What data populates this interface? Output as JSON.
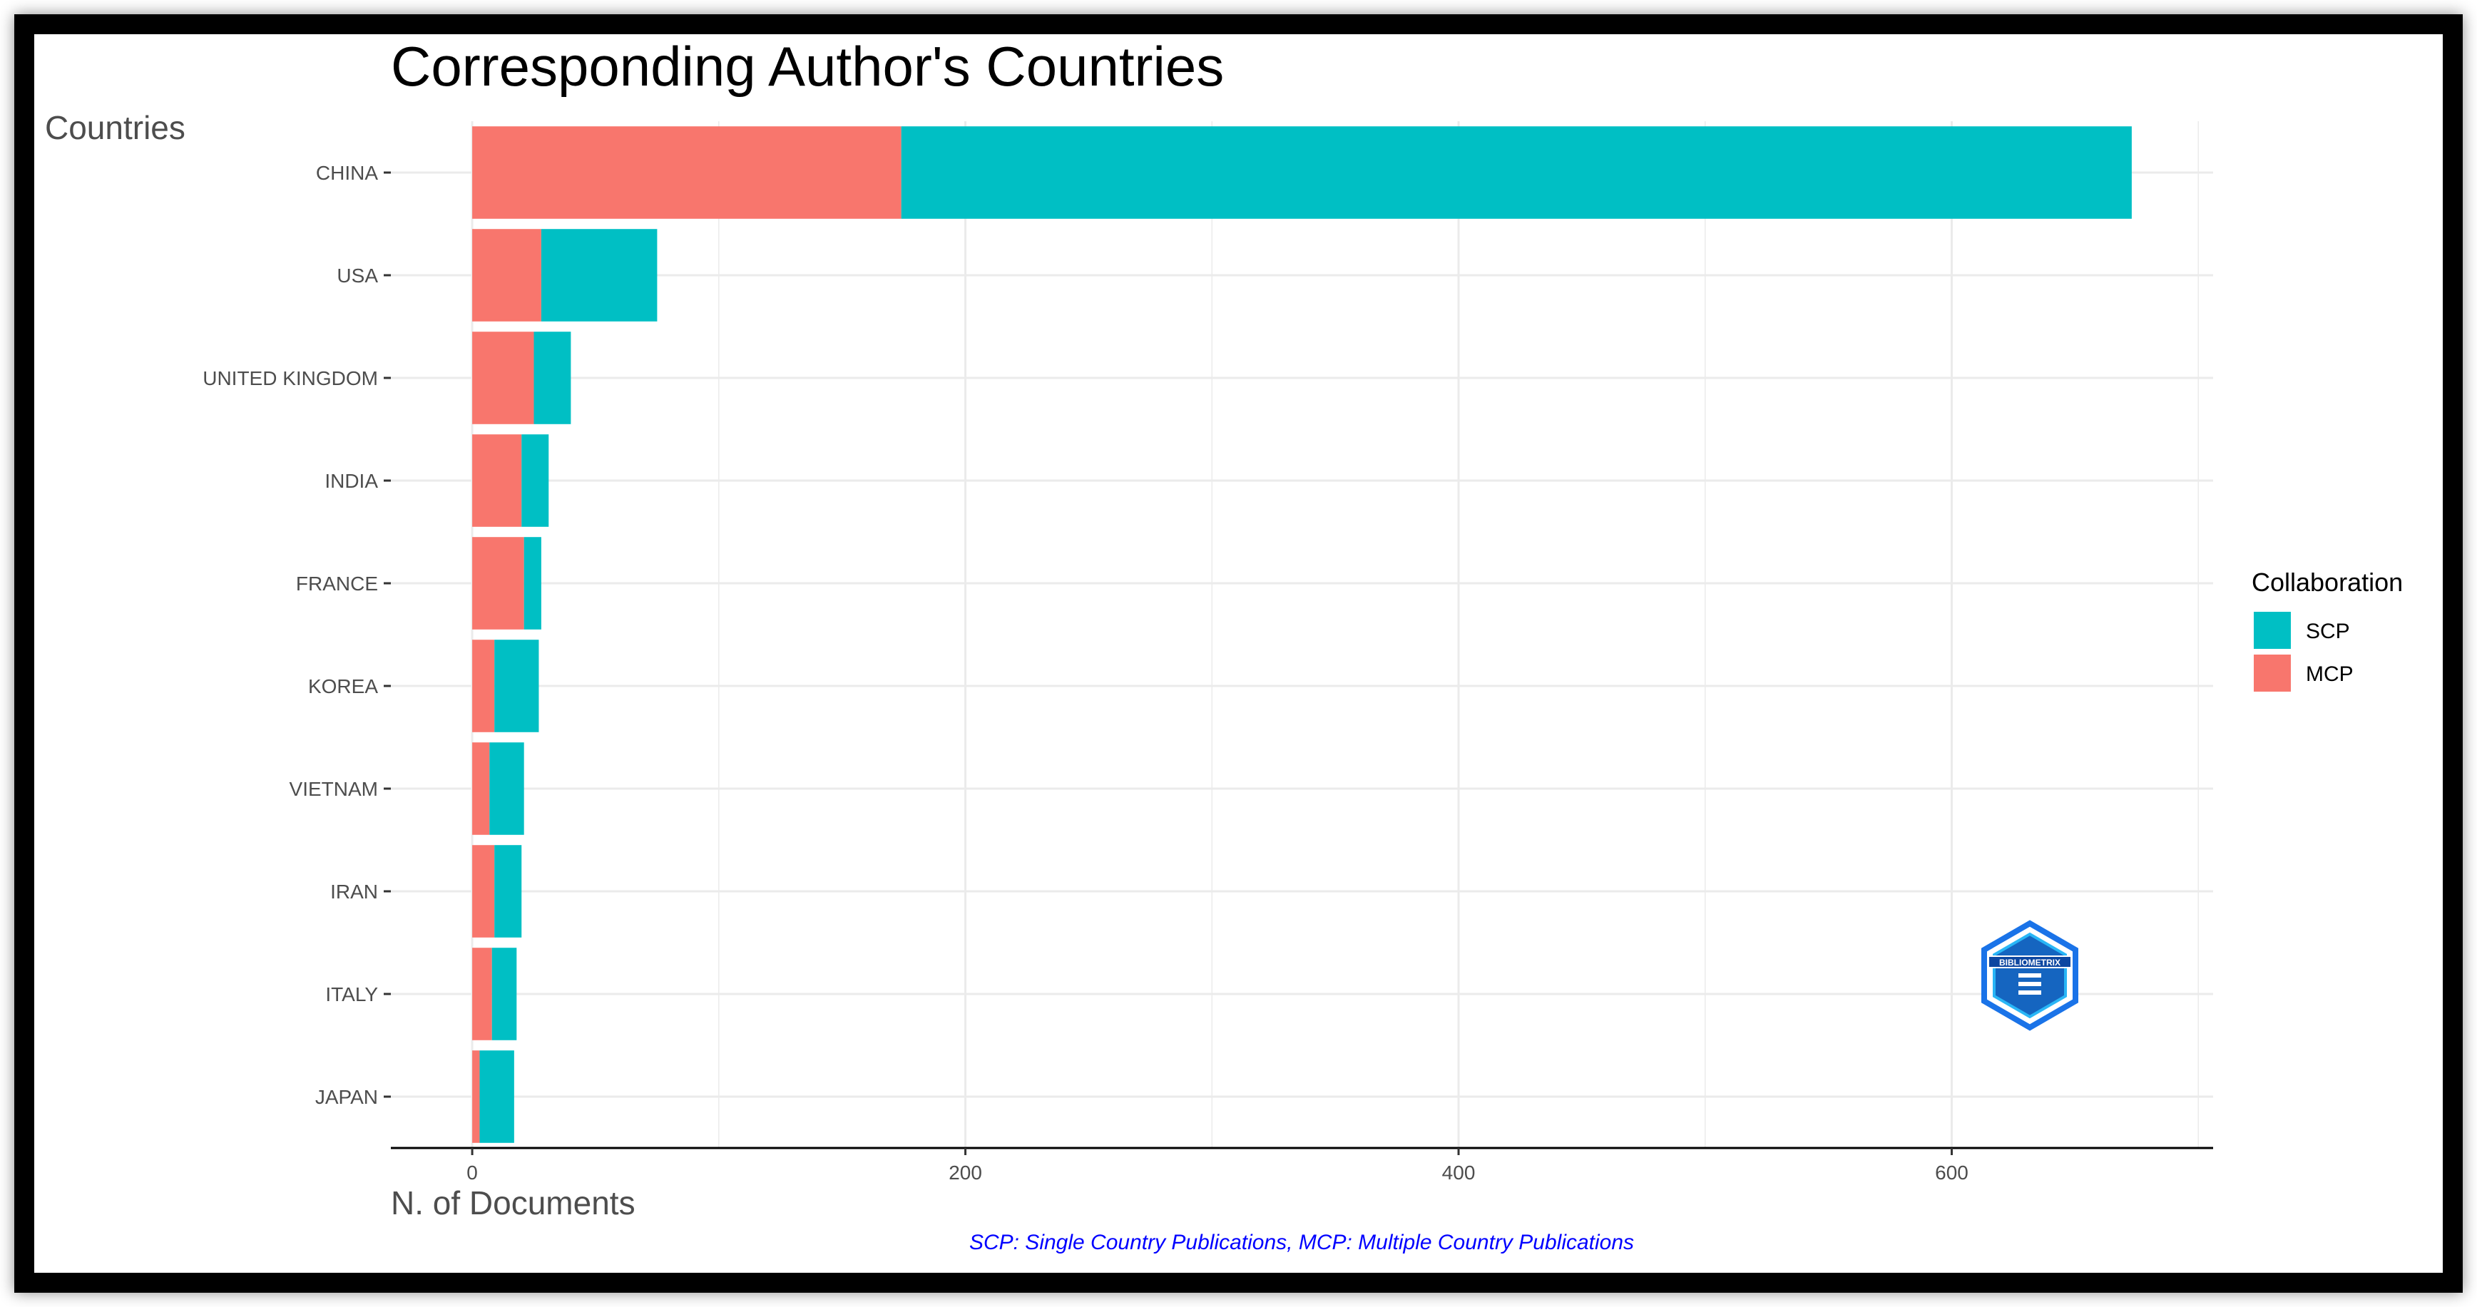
{
  "chart_data": {
    "type": "bar",
    "orientation": "horizontal",
    "stacked": true,
    "title": "Corresponding Author's Countries",
    "xlabel": "N. of Documents",
    "ylabel": "Countries",
    "categories": [
      "CHINA",
      "USA",
      "UNITED KINGDOM",
      "INDIA",
      "FRANCE",
      "KOREA",
      "VIETNAM",
      "IRAN",
      "ITALY",
      "JAPAN"
    ],
    "series": [
      {
        "name": "MCP",
        "color": "#F8766D",
        "values": [
          174,
          28,
          25,
          20,
          21,
          9,
          7,
          9,
          8,
          3
        ]
      },
      {
        "name": "SCP",
        "color": "#00BFC4",
        "values": [
          499,
          47,
          15,
          11,
          7,
          18,
          14,
          11,
          10,
          14
        ]
      }
    ],
    "xticks": [
      0,
      200,
      400,
      600
    ],
    "xlim": [
      -33,
      706
    ],
    "grid": true,
    "legend": {
      "title": "Collaboration",
      "position": "right",
      "entries": [
        {
          "label": "SCP",
          "color": "#00BFC4"
        },
        {
          "label": "MCP",
          "color": "#F8766D"
        }
      ]
    },
    "caption": "SCP: Single Country Publications, MCP: Multiple Country Publications",
    "caption_color": "#0000FF",
    "logo_text": "BIBLIOMETRIX"
  }
}
